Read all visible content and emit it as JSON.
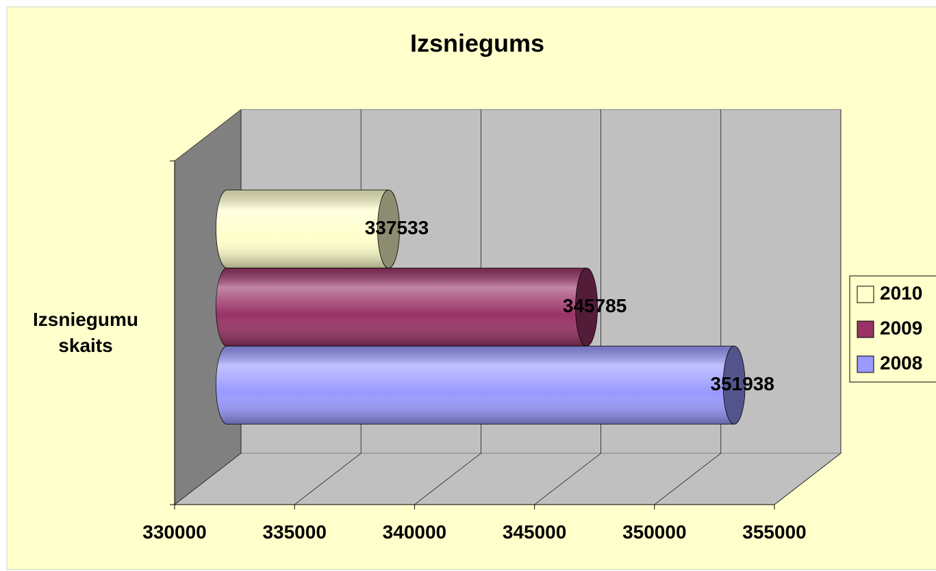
{
  "chart_data": {
    "type": "bar3d_horizontal",
    "title": "Izsniegums",
    "categories": [
      "Izsniegumu skaits"
    ],
    "series": [
      {
        "name": "2010",
        "color": "#ffffcc",
        "values": [
          337533
        ]
      },
      {
        "name": "2009",
        "color": "#993366",
        "values": [
          345785
        ]
      },
      {
        "name": "2008",
        "color": "#9999ff",
        "values": [
          351938
        ]
      }
    ],
    "xlim": [
      330000,
      355000
    ],
    "xticks": [
      330000,
      335000,
      340000,
      345000,
      350000,
      355000
    ],
    "grid": true,
    "legend": "right"
  }
}
